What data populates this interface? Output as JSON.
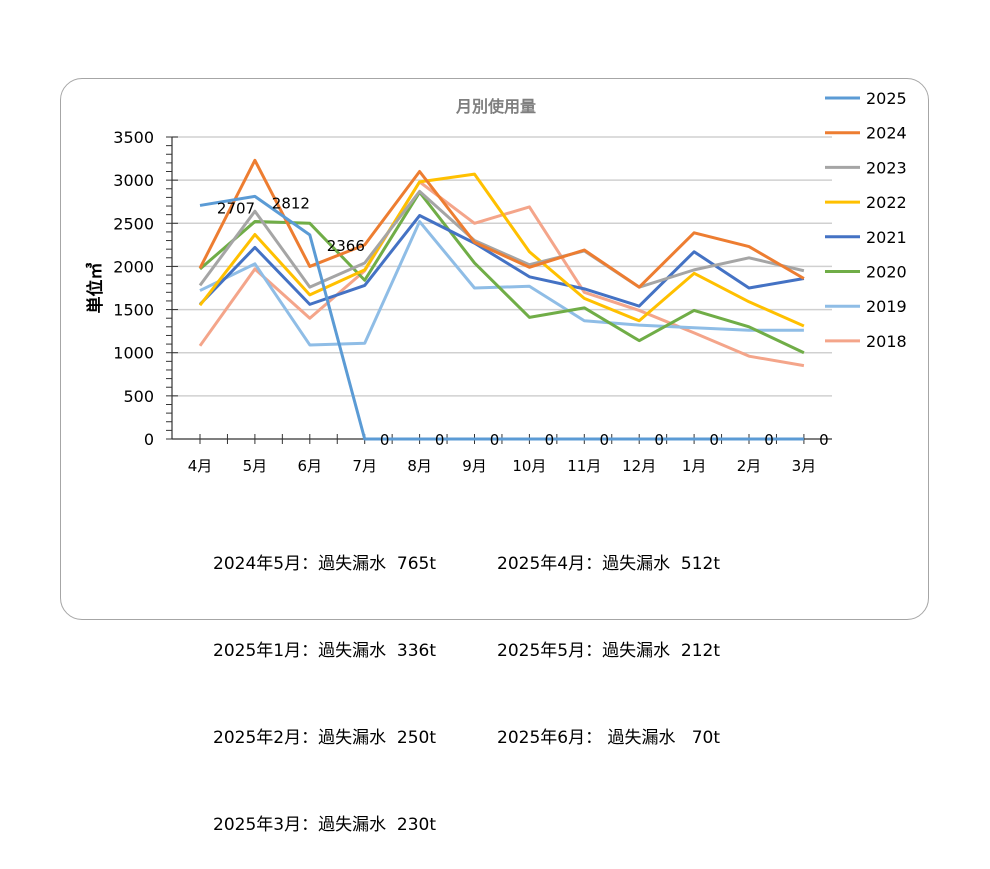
{
  "chart_data": {
    "type": "line",
    "title": "月別使用量",
    "xlabel": "",
    "ylabel": "単位㎥",
    "ylim": [
      0,
      3500
    ],
    "yticks": [
      0,
      500,
      1000,
      1500,
      2000,
      2500,
      3000,
      3500
    ],
    "grid": true,
    "legend_position": "right",
    "categories": [
      "4月",
      "5月",
      "6月",
      "7月",
      "8月",
      "9月",
      "10月",
      "11月",
      "12月",
      "1月",
      "2月",
      "3月"
    ],
    "series": [
      {
        "name": "2025",
        "color": "#5b9bd5",
        "values": [
          2707,
          2812,
          2366,
          0,
          0,
          0,
          0,
          0,
          0,
          0,
          0,
          0
        ],
        "labels": true
      },
      {
        "name": "2024",
        "color": "#ed7d31",
        "values": [
          1980,
          3230,
          2000,
          2250,
          3100,
          2280,
          1990,
          2190,
          1760,
          2390,
          2230,
          1860
        ]
      },
      {
        "name": "2023",
        "color": "#a5a5a5",
        "values": [
          1780,
          2640,
          1760,
          2040,
          2870,
          2300,
          2020,
          2180,
          1760,
          1960,
          2100,
          1950
        ]
      },
      {
        "name": "2022",
        "color": "#ffc000",
        "values": [
          1550,
          2370,
          1670,
          1960,
          2980,
          3070,
          2170,
          1630,
          1370,
          1920,
          1590,
          1310
        ]
      },
      {
        "name": "2021",
        "color": "#4472c4",
        "values": [
          1560,
          2220,
          1560,
          1780,
          2590,
          2270,
          1880,
          1740,
          1540,
          2170,
          1750,
          1860
        ]
      },
      {
        "name": "2020",
        "color": "#70ad47",
        "values": [
          1970,
          2520,
          2500,
          1840,
          2860,
          2040,
          1410,
          1520,
          1140,
          1490,
          1300,
          1000
        ]
      },
      {
        "name": "2019",
        "color": "#8fbde6",
        "values": [
          1720,
          2030,
          1090,
          1110,
          2520,
          1750,
          1770,
          1370,
          1320,
          1290,
          1260,
          1260
        ]
      },
      {
        "name": "2018",
        "color": "#f4a58a",
        "values": [
          1080,
          1970,
          1400,
          1950,
          2980,
          2500,
          2690,
          1700,
          1490,
          1230,
          960,
          850
        ]
      }
    ],
    "annotations": {
      "left": [
        "2024年5月：過失漏水  765t",
        "2025年1月：過失漏水  336t",
        "2025年2月：過失漏水  250t",
        "2025年3月：過失漏水  230t"
      ],
      "right": [
        "2025年4月：過失漏水  512t",
        "2025年5月：過失漏水  212t",
        "2025年6月： 過失漏水   70t"
      ]
    }
  }
}
